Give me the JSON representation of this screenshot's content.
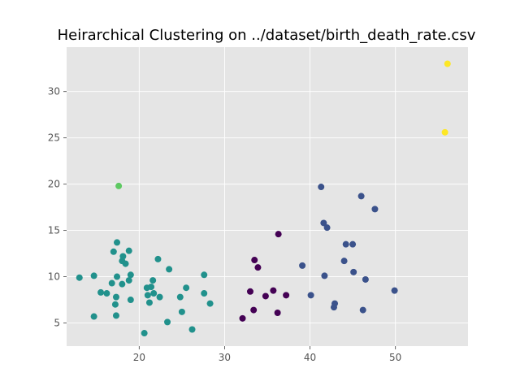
{
  "chart_data": {
    "type": "scatter",
    "title": "Heirarchical Clustering on ../dataset/birth_death_rate.csv",
    "xlabel": "",
    "ylabel": "",
    "xlim": [
      11.5,
      58.5
    ],
    "ylim": [
      2.5,
      34.8
    ],
    "xticks": [
      20,
      30,
      40,
      50
    ],
    "yticks": [
      5,
      10,
      15,
      20,
      25,
      30
    ],
    "grid": true,
    "background": "#e5e5e5",
    "gridcolor": "#ffffff",
    "cluster_colors": [
      "#440154",
      "#3b528b",
      "#21918c",
      "#5ec962",
      "#fde725"
    ],
    "points": [
      {
        "x": 13.0,
        "y": 9.9,
        "c": 2
      },
      {
        "x": 14.7,
        "y": 10.1,
        "c": 2
      },
      {
        "x": 14.7,
        "y": 5.7,
        "c": 2
      },
      {
        "x": 15.5,
        "y": 8.3,
        "c": 2
      },
      {
        "x": 16.2,
        "y": 8.2,
        "c": 2
      },
      {
        "x": 16.8,
        "y": 9.3,
        "c": 2
      },
      {
        "x": 17.0,
        "y": 12.7,
        "c": 2
      },
      {
        "x": 17.2,
        "y": 7.0,
        "c": 2
      },
      {
        "x": 17.3,
        "y": 7.8,
        "c": 2
      },
      {
        "x": 17.3,
        "y": 5.8,
        "c": 2
      },
      {
        "x": 17.4,
        "y": 13.7,
        "c": 2
      },
      {
        "x": 17.4,
        "y": 10.0,
        "c": 2
      },
      {
        "x": 18.0,
        "y": 9.2,
        "c": 2
      },
      {
        "x": 18.0,
        "y": 11.7,
        "c": 2
      },
      {
        "x": 18.1,
        "y": 12.2,
        "c": 2
      },
      {
        "x": 18.4,
        "y": 11.4,
        "c": 2
      },
      {
        "x": 18.8,
        "y": 12.8,
        "c": 2
      },
      {
        "x": 18.8,
        "y": 9.6,
        "c": 2
      },
      {
        "x": 19.0,
        "y": 10.2,
        "c": 2
      },
      {
        "x": 19.0,
        "y": 7.5,
        "c": 2
      },
      {
        "x": 20.6,
        "y": 3.9,
        "c": 2
      },
      {
        "x": 20.9,
        "y": 8.8,
        "c": 2
      },
      {
        "x": 21.0,
        "y": 8.0,
        "c": 2
      },
      {
        "x": 21.2,
        "y": 7.2,
        "c": 2
      },
      {
        "x": 21.4,
        "y": 8.9,
        "c": 2
      },
      {
        "x": 21.6,
        "y": 9.6,
        "c": 2
      },
      {
        "x": 21.7,
        "y": 8.2,
        "c": 2
      },
      {
        "x": 22.2,
        "y": 11.9,
        "c": 2
      },
      {
        "x": 22.4,
        "y": 7.8,
        "c": 2
      },
      {
        "x": 23.3,
        "y": 5.1,
        "c": 2
      },
      {
        "x": 23.5,
        "y": 10.8,
        "c": 2
      },
      {
        "x": 24.8,
        "y": 7.8,
        "c": 2
      },
      {
        "x": 25.0,
        "y": 6.2,
        "c": 2
      },
      {
        "x": 25.5,
        "y": 8.8,
        "c": 2
      },
      {
        "x": 26.2,
        "y": 4.3,
        "c": 2
      },
      {
        "x": 27.6,
        "y": 10.2,
        "c": 2
      },
      {
        "x": 27.6,
        "y": 8.2,
        "c": 2
      },
      {
        "x": 28.3,
        "y": 7.1,
        "c": 2
      },
      {
        "x": 17.6,
        "y": 19.8,
        "c": 3
      },
      {
        "x": 32.1,
        "y": 5.5,
        "c": 0
      },
      {
        "x": 33.0,
        "y": 8.4,
        "c": 0
      },
      {
        "x": 33.4,
        "y": 6.4,
        "c": 0
      },
      {
        "x": 33.5,
        "y": 11.8,
        "c": 0
      },
      {
        "x": 33.9,
        "y": 11.0,
        "c": 0
      },
      {
        "x": 34.8,
        "y": 7.9,
        "c": 0
      },
      {
        "x": 35.7,
        "y": 8.5,
        "c": 0
      },
      {
        "x": 36.2,
        "y": 6.1,
        "c": 0
      },
      {
        "x": 36.3,
        "y": 14.6,
        "c": 0
      },
      {
        "x": 37.2,
        "y": 8.0,
        "c": 0
      },
      {
        "x": 39.1,
        "y": 11.2,
        "c": 1
      },
      {
        "x": 40.1,
        "y": 8.0,
        "c": 1
      },
      {
        "x": 41.3,
        "y": 19.7,
        "c": 1
      },
      {
        "x": 41.6,
        "y": 15.8,
        "c": 1
      },
      {
        "x": 41.7,
        "y": 10.1,
        "c": 1
      },
      {
        "x": 42.0,
        "y": 15.3,
        "c": 1
      },
      {
        "x": 42.8,
        "y": 6.7,
        "c": 1
      },
      {
        "x": 42.9,
        "y": 7.1,
        "c": 1
      },
      {
        "x": 44.0,
        "y": 11.7,
        "c": 1
      },
      {
        "x": 44.2,
        "y": 13.5,
        "c": 1
      },
      {
        "x": 45.0,
        "y": 13.5,
        "c": 1
      },
      {
        "x": 45.1,
        "y": 10.5,
        "c": 1
      },
      {
        "x": 46.0,
        "y": 18.7,
        "c": 1
      },
      {
        "x": 46.2,
        "y": 6.4,
        "c": 1
      },
      {
        "x": 46.5,
        "y": 9.7,
        "c": 1
      },
      {
        "x": 47.6,
        "y": 17.3,
        "c": 1
      },
      {
        "x": 49.9,
        "y": 8.5,
        "c": 1
      },
      {
        "x": 55.8,
        "y": 25.6,
        "c": 4
      },
      {
        "x": 56.1,
        "y": 33.0,
        "c": 4
      }
    ]
  }
}
